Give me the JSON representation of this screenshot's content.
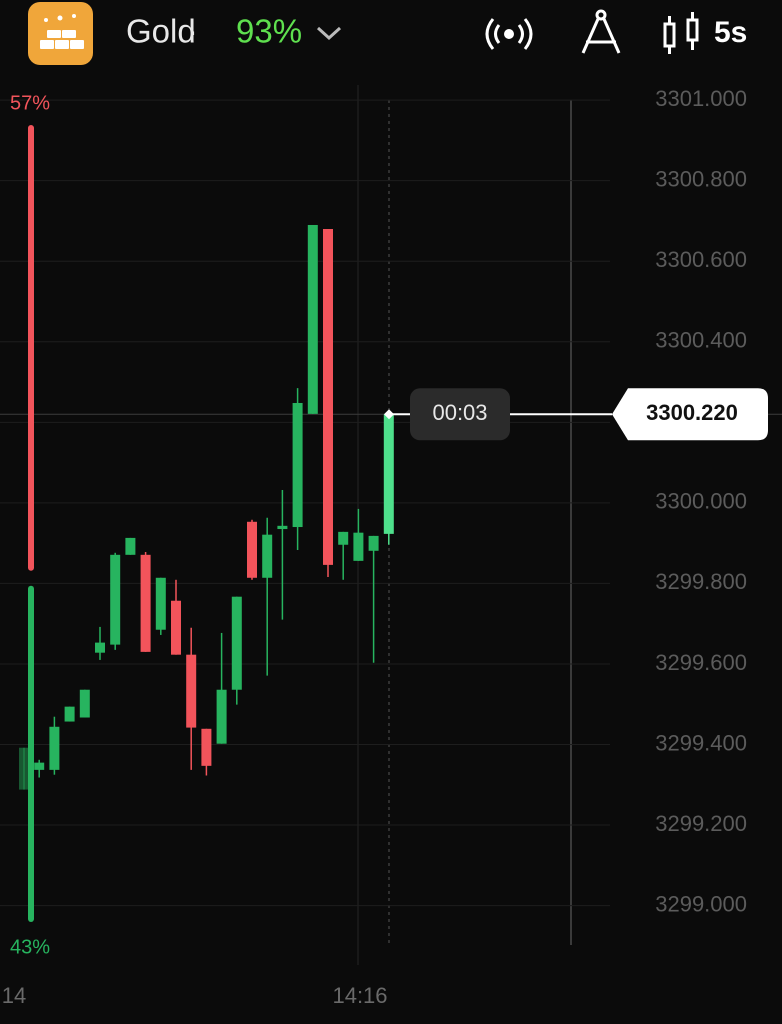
{
  "header": {
    "asset": "Gold",
    "separator": "·",
    "payout": {
      "value": 93,
      "label": "93%"
    },
    "interval": "5s"
  },
  "chart_data": {
    "type": "candlestick",
    "ylim": [
      3298.85,
      3301.05
    ],
    "yticks": [
      {
        "value": 3299,
        "label": "3299.000"
      },
      {
        "value": 3299.2,
        "label": "3299.200"
      },
      {
        "value": 3299.4,
        "label": "3299.400"
      },
      {
        "value": 3299.6,
        "label": "3299.600"
      },
      {
        "value": 3299.8,
        "label": "3299.800"
      },
      {
        "value": 3300,
        "label": "3300.000"
      },
      {
        "value": 3300.2,
        "label": "3300.200"
      },
      {
        "value": 3300.4,
        "label": "3300.400"
      },
      {
        "value": 3300.6,
        "label": "3300.600"
      },
      {
        "value": 3300.8,
        "label": "3300.800"
      },
      {
        "value": 3301,
        "label": "3301.000"
      }
    ],
    "grid": true,
    "up_color": "#27b45f",
    "down_color": "#f2545b",
    "live_color": "#4fe08c",
    "time_labels": [
      "14",
      "14:16"
    ],
    "open": [
      3299.288,
      3299.337,
      3299.337,
      3299.457,
      3299.467,
      3299.628,
      3299.648,
      3299.871,
      3299.871,
      3299.685,
      3299.757,
      3299.623,
      3299.439,
      3299.402,
      3299.536,
      3299.953,
      3299.814,
      3299.935,
      3299.94,
      3300.221,
      3300.68,
      3299.896,
      3299.856,
      3299.881,
      3299.923
    ],
    "high": [
      3299.392,
      3299.362,
      3299.469,
      3299.494,
      3299.536,
      3299.692,
      3299.876,
      3299.913,
      3299.878,
      3299.814,
      3299.809,
      3299.69,
      3299.439,
      3299.677,
      3299.767,
      3299.958,
      3299.963,
      3300.032,
      3300.285,
      3300.69,
      3300.68,
      3299.928,
      3299.985,
      3299.918,
      3300.22
    ],
    "low": [
      3299.288,
      3299.318,
      3299.325,
      3299.457,
      3299.467,
      3299.61,
      3299.635,
      3299.871,
      3299.63,
      3299.672,
      3299.623,
      3299.337,
      3299.323,
      3299.402,
      3299.499,
      3299.809,
      3299.571,
      3299.71,
      3299.883,
      3300.221,
      3299.816,
      3299.809,
      3299.856,
      3299.603,
      3299.896
    ],
    "close": [
      3299.392,
      3299.355,
      3299.444,
      3299.494,
      3299.536,
      3299.653,
      3299.871,
      3299.913,
      3299.63,
      3299.814,
      3299.623,
      3299.442,
      3299.347,
      3299.536,
      3299.767,
      3299.814,
      3299.921,
      3299.943,
      3300.248,
      3300.69,
      3299.846,
      3299.928,
      3299.926,
      3299.918,
      3300.22
    ],
    "current_price": {
      "value": 3300.22,
      "label": "3300.220"
    },
    "timer": "00:03",
    "sentiment": {
      "values": [
        57,
        43
      ],
      "value_labels": [
        "57%",
        "43%"
      ],
      "colors": [
        "#f2545b",
        "#27b45f"
      ]
    }
  }
}
